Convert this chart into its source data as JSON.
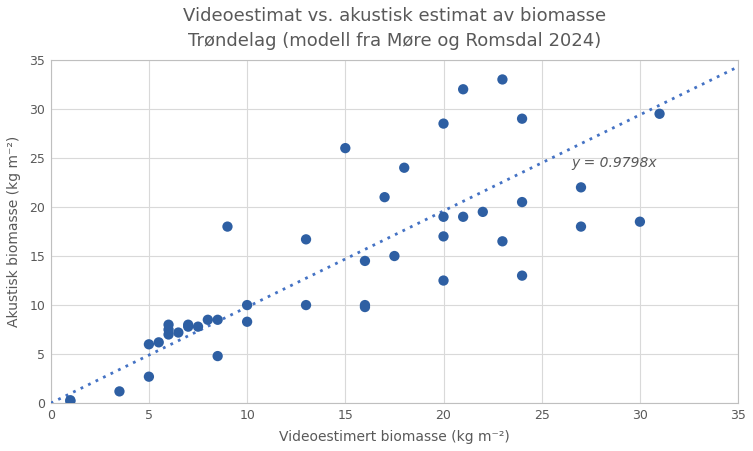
{
  "title_line1": "Videoestimat vs. akustisk estimat av biomasse",
  "title_line2": "Trøndelag (modell fra Møre og Romsdal 2024)",
  "xlabel": "Videoestimert biomasse (kg m⁻²)",
  "ylabel": "Akustisk biomasse (kg m⁻²)",
  "scatter_x": [
    1,
    1,
    3.5,
    5,
    5,
    5.5,
    6,
    6,
    6,
    6.5,
    7,
    7,
    7.5,
    8,
    8.5,
    8.5,
    9,
    10,
    10,
    13,
    13,
    15,
    16,
    16,
    16,
    17,
    17.5,
    18,
    20,
    20,
    20,
    20,
    21,
    21,
    22,
    23,
    23,
    24,
    24,
    24,
    27,
    27,
    30,
    31
  ],
  "scatter_y": [
    0.3,
    0.2,
    1.2,
    2.7,
    6,
    6.2,
    8,
    7.5,
    7,
    7.2,
    7.8,
    8,
    7.8,
    8.5,
    8.5,
    4.8,
    18,
    8.3,
    10,
    10,
    16.7,
    26,
    9.8,
    10,
    14.5,
    21,
    15,
    24,
    12.5,
    17,
    19,
    28.5,
    32,
    19,
    19.5,
    16.5,
    33,
    20.5,
    29,
    13,
    18,
    22,
    18.5,
    29.5
  ],
  "slope": 0.9798,
  "line_color": "#4472C4",
  "scatter_color": "#2E5FA3",
  "equation_text": "y = 0.9798x",
  "equation_x": 26.5,
  "equation_y": 24.5,
  "xlim": [
    0,
    35
  ],
  "ylim": [
    0,
    35
  ],
  "xticks": [
    0,
    5,
    10,
    15,
    20,
    25,
    30,
    35
  ],
  "yticks": [
    0,
    5,
    10,
    15,
    20,
    25,
    30,
    35
  ],
  "fig_bg_color": "#FFFFFF",
  "plot_bg_color": "#FFFFFF",
  "title_color": "#595959",
  "axis_color": "#595959",
  "tick_color": "#595959",
  "grid_color": "#D9D9D9",
  "spine_color": "#BFBFBF",
  "title_fontsize": 13,
  "label_fontsize": 10,
  "tick_fontsize": 9,
  "marker_size": 55,
  "figsize": [
    7.53,
    4.51
  ],
  "dpi": 100
}
